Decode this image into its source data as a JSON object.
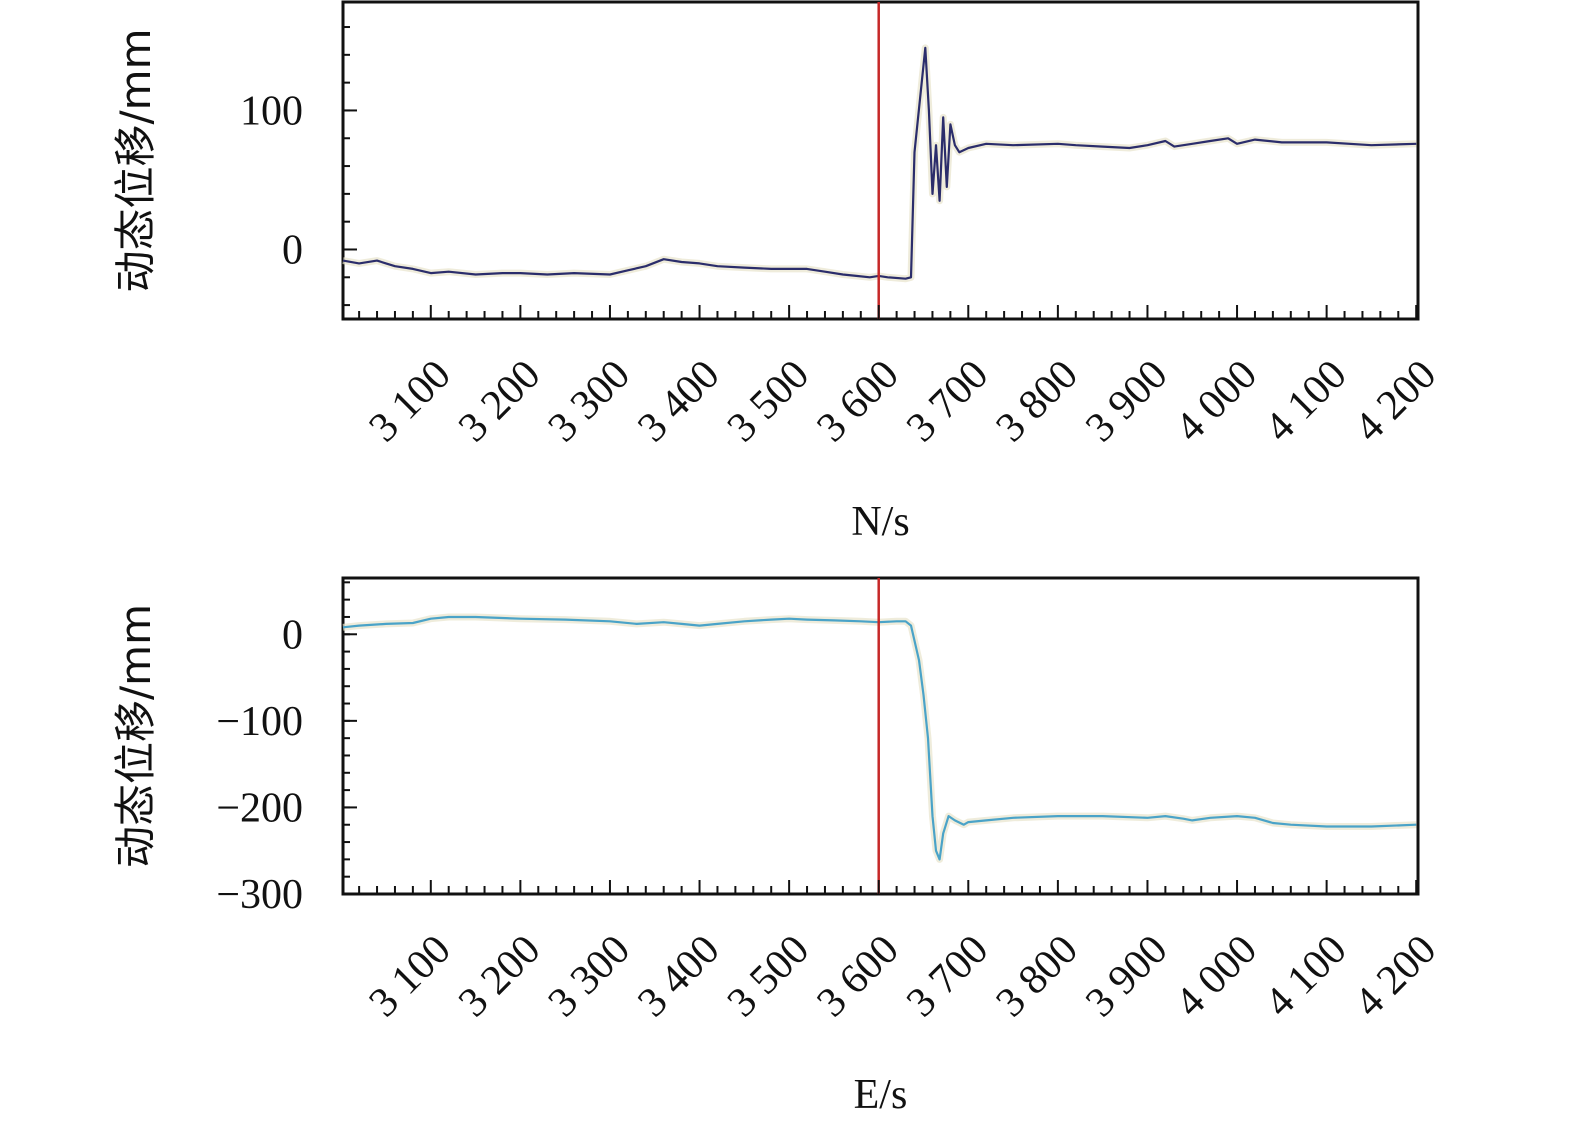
{
  "chart_data": [
    {
      "type": "line",
      "xlabel": "N/s",
      "ylabel": "动态位移/mm",
      "xlim": [
        3002,
        4202
      ],
      "ylim": [
        -50,
        178
      ],
      "xticks": [
        3100,
        3200,
        3300,
        3400,
        3500,
        3600,
        3700,
        3800,
        3900,
        4000,
        4100,
        4200
      ],
      "xtick_labels": [
        "3 100",
        "3 200",
        "3 300",
        "3 400",
        "3 500",
        "3 600",
        "3 700",
        "3 800",
        "3 900",
        "4 000",
        "4 100",
        "4 200"
      ],
      "yticks": [
        0,
        100
      ],
      "ytick_labels": [
        "0",
        "100"
      ],
      "grid": false,
      "line_color": "#2b2d6b",
      "marker_line": {
        "x": 3600,
        "color": "#c62828"
      },
      "series": [
        {
          "x": [
            3002,
            3020,
            3040,
            3050,
            3060,
            3080,
            3100,
            3120,
            3150,
            3180,
            3200,
            3230,
            3260,
            3300,
            3320,
            3340,
            3360,
            3380,
            3400,
            3420,
            3450,
            3480,
            3500,
            3520,
            3540,
            3560,
            3575,
            3590,
            3600,
            3610,
            3630,
            3636,
            3640,
            3648,
            3652,
            3656,
            3660,
            3664,
            3668,
            3672,
            3676,
            3680,
            3685,
            3690,
            3700,
            3720,
            3750,
            3800,
            3820,
            3850,
            3880,
            3900,
            3920,
            3930,
            3950,
            3970,
            3990,
            4000,
            4020,
            4050,
            4100,
            4150,
            4200
          ],
          "y": [
            -8,
            -10,
            -8,
            -10,
            -12,
            -14,
            -17,
            -16,
            -18,
            -17,
            -17,
            -18,
            -17,
            -18,
            -15,
            -12,
            -7,
            -9,
            -10,
            -12,
            -13,
            -14,
            -14,
            -14,
            -16,
            -18,
            -19,
            -20,
            -19,
            -20,
            -21,
            -20,
            70,
            120,
            145,
            100,
            40,
            75,
            35,
            95,
            45,
            90,
            75,
            70,
            73,
            76,
            75,
            76,
            75,
            74,
            73,
            75,
            78,
            74,
            76,
            78,
            80,
            76,
            79,
            77,
            77,
            75,
            76
          ]
        }
      ]
    },
    {
      "type": "line",
      "xlabel": "E/s",
      "ylabel": "动态位移/mm",
      "xlim": [
        3002,
        4202
      ],
      "ylim": [
        -300,
        65
      ],
      "xticks": [
        3100,
        3200,
        3300,
        3400,
        3500,
        3600,
        3700,
        3800,
        3900,
        4000,
        4100,
        4200
      ],
      "xtick_labels": [
        "3 100",
        "3 200",
        "3 300",
        "3 400",
        "3 500",
        "3 600",
        "3 700",
        "3 800",
        "3 900",
        "4 000",
        "4 100",
        "4 200"
      ],
      "yticks": [
        0,
        -100,
        -200,
        -300
      ],
      "ytick_labels": [
        "0",
        "−100",
        "−200",
        "−300"
      ],
      "grid": false,
      "line_color": "#4aa3c8",
      "marker_line": {
        "x": 3600,
        "color": "#c62828"
      },
      "series": [
        {
          "x": [
            3002,
            3020,
            3050,
            3080,
            3100,
            3120,
            3150,
            3200,
            3250,
            3300,
            3330,
            3360,
            3380,
            3400,
            3420,
            3450,
            3480,
            3500,
            3520,
            3550,
            3580,
            3600,
            3620,
            3630,
            3636,
            3645,
            3650,
            3655,
            3660,
            3664,
            3668,
            3672,
            3678,
            3685,
            3695,
            3700,
            3720,
            3750,
            3800,
            3850,
            3900,
            3920,
            3940,
            3950,
            3970,
            4000,
            4020,
            4040,
            4060,
            4100,
            4150,
            4200
          ],
          "y": [
            8,
            10,
            12,
            13,
            18,
            20,
            20,
            18,
            17,
            15,
            12,
            14,
            12,
            10,
            12,
            15,
            17,
            18,
            17,
            16,
            15,
            14,
            15,
            15,
            10,
            -30,
            -70,
            -120,
            -210,
            -250,
            -260,
            -230,
            -210,
            -215,
            -220,
            -217,
            -215,
            -212,
            -210,
            -210,
            -212,
            -210,
            -213,
            -215,
            -212,
            -210,
            -212,
            -218,
            -220,
            -222,
            -222,
            -220
          ]
        }
      ]
    }
  ]
}
